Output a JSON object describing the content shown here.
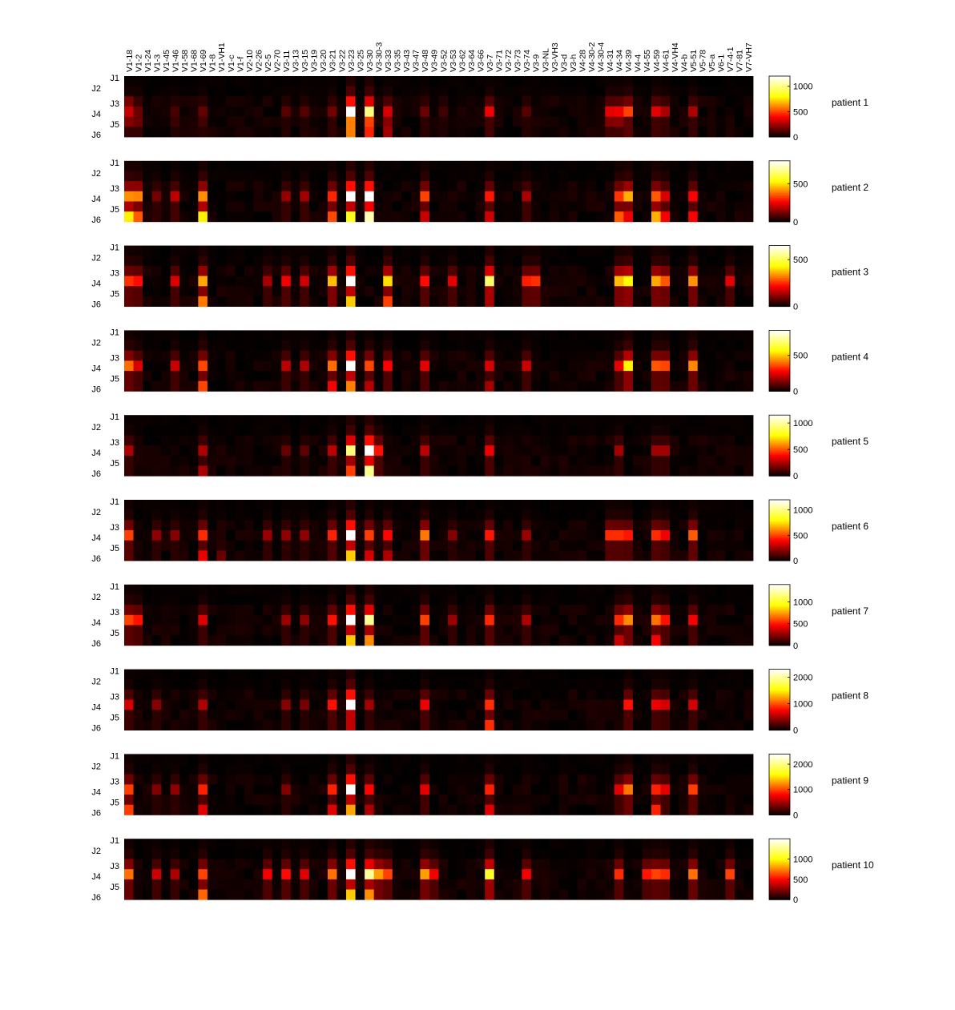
{
  "chart_data": {
    "type": "heatmap",
    "x_labels": [
      "V1-18",
      "V1-2",
      "V1-24",
      "V1-3",
      "V1-45",
      "V1-46",
      "V1-58",
      "V1-68",
      "V1-69",
      "V1-8",
      "V1-VH1",
      "V1-c",
      "V1-f",
      "V2-10",
      "V2-26",
      "V2-5",
      "V2-70",
      "V3-11",
      "V3-13",
      "V3-15",
      "V3-19",
      "V3-20",
      "V3-21",
      "V3-22",
      "V3-23",
      "V3-25",
      "V3-30",
      "V3-30-3",
      "V3-33",
      "V3-35",
      "V3-43",
      "V3-47",
      "V3-48",
      "V3-49",
      "V3-52",
      "V3-53",
      "V3-62",
      "V3-64",
      "V3-66",
      "V3-7",
      "V3-71",
      "V3-72",
      "V3-73",
      "V3-74",
      "V3-9",
      "V3-NL",
      "V3-VH3",
      "V3-d",
      "V3-h",
      "V4-28",
      "V4-30-2",
      "V4-30-4",
      "V4-31",
      "V4-34",
      "V4-39",
      "V4-4",
      "V4-55",
      "V4-59",
      "V4-61",
      "V4-VH4",
      "V4-b",
      "V5-51",
      "V5-78",
      "V5-a",
      "V6-1",
      "V7-4-1",
      "V7-81",
      "V7-VH7"
    ],
    "y_labels": [
      "J1",
      "J2",
      "J3",
      "J4",
      "J5",
      "J6"
    ],
    "colormap": "hot",
    "cmap_colors": [
      "#000000",
      "#ff0000",
      "#ffff00",
      "#ffffff"
    ],
    "panels": [
      {
        "title": "patient 1",
        "clim": [
          0,
          1200
        ],
        "ticks": [
          0,
          500,
          1000
        ],
        "hot": [
          [
            0,
            340,
            "2:0.55,3:0.9,4:0.6"
          ],
          [
            1,
            330,
            "3:0.5,4:0.5"
          ],
          [
            5,
            220,
            "3:0.5,4:0.4"
          ],
          [
            8,
            260,
            "3:0.6,4:0.4"
          ],
          [
            17,
            230,
            "3:0.6"
          ],
          [
            19,
            220,
            "3:0.6"
          ],
          [
            22,
            300,
            "3:0.6"
          ],
          [
            24,
            1200,
            "3:1,4:0.5,5:0.5"
          ],
          [
            26,
            1000,
            "3:1,4:0.5,5:0.45"
          ],
          [
            28,
            420,
            "3:0.8,4:0.5,5:0.6"
          ],
          [
            32,
            280,
            "3:0.6"
          ],
          [
            34,
            200,
            "3:0.5"
          ],
          [
            39,
            420,
            "3:0.9"
          ],
          [
            43,
            230,
            "3:0.6"
          ],
          [
            52,
            400,
            "3:0.9,4:0.5"
          ],
          [
            53,
            420,
            "3:0.9,4:0.5"
          ],
          [
            54,
            560,
            "3:0.9"
          ],
          [
            57,
            400,
            "3:0.9"
          ],
          [
            58,
            330,
            "3:0.8"
          ],
          [
            61,
            340,
            "3:0.8"
          ]
        ]
      },
      {
        "title": "patient 2",
        "clim": [
          0,
          800
        ],
        "ticks": [
          0,
          500
        ],
        "hot": [
          [
            0,
            520,
            "3:0.8,5:1"
          ],
          [
            1,
            450,
            "3:0.9,5:0.8"
          ],
          [
            3,
            200,
            "3:0.6"
          ],
          [
            5,
            280,
            "3:0.7"
          ],
          [
            8,
            520,
            "3:0.8,5:1"
          ],
          [
            17,
            220,
            "3:0.7"
          ],
          [
            19,
            240,
            "3:0.7"
          ],
          [
            22,
            380,
            "3:0.8,5:0.9"
          ],
          [
            24,
            800,
            "3:1,5:0.7"
          ],
          [
            26,
            800,
            "3:1,5:0.9"
          ],
          [
            32,
            420,
            "3:0.8,5:0.5"
          ],
          [
            39,
            360,
            "3:0.8,5:0.6"
          ],
          [
            43,
            250,
            "3:0.7"
          ],
          [
            53,
            400,
            "3:0.8,5:0.9"
          ],
          [
            54,
            500,
            "3:0.9,5:0.5"
          ],
          [
            57,
            450,
            "3:0.8,5:1"
          ],
          [
            58,
            320,
            "3:0.7,5:0.8"
          ],
          [
            61,
            330,
            "3:0.8,5:0.8"
          ]
        ]
      },
      {
        "title": "patient 3",
        "clim": [
          0,
          650
        ],
        "ticks": [
          0,
          500
        ],
        "hot": [
          [
            0,
            320,
            "3:0.8"
          ],
          [
            1,
            280,
            "3:0.8"
          ],
          [
            5,
            230,
            "3:0.8"
          ],
          [
            8,
            400,
            "3:0.9,5:0.8"
          ],
          [
            15,
            200,
            "3:0.7"
          ],
          [
            17,
            260,
            "3:0.8"
          ],
          [
            19,
            220,
            "3:0.8"
          ],
          [
            22,
            420,
            "3:0.9"
          ],
          [
            24,
            650,
            "3:1,5:0.6"
          ],
          [
            28,
            450,
            "3:0.9,5:0.6"
          ],
          [
            32,
            280,
            "3:0.8"
          ],
          [
            35,
            240,
            "3:0.8"
          ],
          [
            39,
            580,
            "3:0.9"
          ],
          [
            43,
            300,
            "3:0.8"
          ],
          [
            44,
            320,
            "3:0.8"
          ],
          [
            53,
            420,
            "3:0.9"
          ],
          [
            54,
            480,
            "3:0.9"
          ],
          [
            57,
            400,
            "3:0.9"
          ],
          [
            58,
            360,
            "3:0.8"
          ],
          [
            61,
            380,
            "3:0.9"
          ],
          [
            65,
            240,
            "3:0.8"
          ]
        ]
      },
      {
        "title": "patient 4",
        "clim": [
          0,
          850
        ],
        "ticks": [
          0,
          500
        ],
        "hot": [
          [
            0,
            450,
            "3:0.9"
          ],
          [
            1,
            300,
            "3:0.8"
          ],
          [
            5,
            280,
            "3:0.8"
          ],
          [
            8,
            450,
            "3:0.8,5:0.8"
          ],
          [
            17,
            260,
            "3:0.8"
          ],
          [
            19,
            240,
            "3:0.8"
          ],
          [
            22,
            450,
            "3:0.9,5:0.6"
          ],
          [
            24,
            850,
            "3:1,5:0.5"
          ],
          [
            26,
            400,
            "3:0.9,5:0.5"
          ],
          [
            28,
            350,
            "3:0.8"
          ],
          [
            32,
            320,
            "3:0.8"
          ],
          [
            39,
            300,
            "3:0.8,5:0.6"
          ],
          [
            43,
            280,
            "3:0.8"
          ],
          [
            53,
            320,
            "3:0.8"
          ],
          [
            54,
            620,
            "3:0.9"
          ],
          [
            57,
            420,
            "3:0.9"
          ],
          [
            58,
            400,
            "3:0.9"
          ],
          [
            61,
            480,
            "3:0.9"
          ]
        ]
      },
      {
        "title": "patient 5",
        "clim": [
          0,
          1150
        ],
        "ticks": [
          0,
          500,
          1000
        ],
        "hot": [
          [
            0,
            320,
            "3:0.8"
          ],
          [
            8,
            320,
            "3:0.8,5:0.8"
          ],
          [
            17,
            220,
            "3:0.7"
          ],
          [
            19,
            200,
            "3:0.7"
          ],
          [
            22,
            350,
            "3:0.8"
          ],
          [
            24,
            950,
            "3:1,5:0.5"
          ],
          [
            26,
            1150,
            "3:1,5:0.85"
          ],
          [
            27,
            450,
            "3:0.9"
          ],
          [
            32,
            350,
            "3:0.8"
          ],
          [
            39,
            450,
            "3:0.8"
          ],
          [
            53,
            300,
            "3:0.8"
          ],
          [
            57,
            300,
            "3:0.8"
          ],
          [
            58,
            300,
            "3:0.8"
          ]
        ]
      },
      {
        "title": "patient 6",
        "clim": [
          0,
          1200
        ],
        "ticks": [
          0,
          500,
          1000
        ],
        "hot": [
          [
            0,
            550,
            "3:0.9"
          ],
          [
            3,
            280,
            "3:0.8"
          ],
          [
            5,
            260,
            "3:0.8"
          ],
          [
            8,
            520,
            "3:0.9,5:0.7"
          ],
          [
            10,
            200,
            "5:0.8"
          ],
          [
            15,
            300,
            "3:0.8"
          ],
          [
            17,
            280,
            "3:0.8"
          ],
          [
            19,
            280,
            "3:0.8"
          ],
          [
            22,
            500,
            "3:0.9"
          ],
          [
            24,
            1200,
            "3:1,5:0.6"
          ],
          [
            26,
            550,
            "3:0.9,5:0.6"
          ],
          [
            28,
            450,
            "3:0.9,5:0.6"
          ],
          [
            32,
            650,
            "3:0.9"
          ],
          [
            35,
            260,
            "3:0.8"
          ],
          [
            39,
            480,
            "3:0.9"
          ],
          [
            43,
            300,
            "3:0.8"
          ],
          [
            52,
            520,
            "3:0.9"
          ],
          [
            53,
            520,
            "3:0.9"
          ],
          [
            54,
            480,
            "3:0.9"
          ],
          [
            57,
            520,
            "3:0.9"
          ],
          [
            58,
            420,
            "3:0.9"
          ],
          [
            61,
            600,
            "3:0.9"
          ]
        ]
      },
      {
        "title": "patient 7",
        "clim": [
          0,
          1400
        ],
        "ticks": [
          0,
          500,
          1000
        ],
        "hot": [
          [
            0,
            650,
            "3:0.9"
          ],
          [
            1,
            550,
            "3:0.9"
          ],
          [
            8,
            450,
            "3:0.9"
          ],
          [
            17,
            350,
            "3:0.8"
          ],
          [
            19,
            320,
            "3:0.8"
          ],
          [
            22,
            550,
            "3:0.9"
          ],
          [
            24,
            1400,
            "3:1,5:0.6"
          ],
          [
            26,
            1200,
            "3:1,5:0.6"
          ],
          [
            32,
            650,
            "3:0.9"
          ],
          [
            35,
            350,
            "3:0.8"
          ],
          [
            39,
            600,
            "3:0.9"
          ],
          [
            43,
            400,
            "3:0.8"
          ],
          [
            53,
            600,
            "3:0.9,5:0.6"
          ],
          [
            54,
            800,
            "3:0.9"
          ],
          [
            57,
            750,
            "3:0.9,5:0.6"
          ],
          [
            58,
            550,
            "3:0.9"
          ],
          [
            61,
            500,
            "3:0.9"
          ]
        ]
      },
      {
        "title": "patient 8",
        "clim": [
          0,
          2300
        ],
        "ticks": [
          0,
          1000,
          2000
        ],
        "hot": [
          [
            0,
            700,
            "3:0.9"
          ],
          [
            3,
            500,
            "3:0.8"
          ],
          [
            8,
            650,
            "3:0.8"
          ],
          [
            17,
            500,
            "3:0.8"
          ],
          [
            19,
            450,
            "3:0.8"
          ],
          [
            22,
            900,
            "3:0.9"
          ],
          [
            24,
            2300,
            "3:1"
          ],
          [
            26,
            600,
            "3:0.8"
          ],
          [
            32,
            800,
            "3:0.9"
          ],
          [
            39,
            1000,
            "3:0.9,5:0.9"
          ],
          [
            54,
            900,
            "3:0.9"
          ],
          [
            57,
            800,
            "3:0.9"
          ],
          [
            58,
            700,
            "3:0.9"
          ],
          [
            61,
            700,
            "3:0.9"
          ]
        ]
      },
      {
        "title": "patient 9",
        "clim": [
          0,
          2400
        ],
        "ticks": [
          0,
          1000,
          2000
        ],
        "hot": [
          [
            0,
            1100,
            "3:0.9,5:0.9"
          ],
          [
            3,
            500,
            "3:0.8"
          ],
          [
            5,
            550,
            "3:0.8"
          ],
          [
            8,
            1000,
            "3:0.9,5:0.7"
          ],
          [
            17,
            500,
            "3:0.8"
          ],
          [
            22,
            1000,
            "3:0.9,5:0.7"
          ],
          [
            24,
            2400,
            "3:1,5:0.55"
          ],
          [
            26,
            900,
            "3:0.9,5:0.6"
          ],
          [
            32,
            800,
            "3:0.9"
          ],
          [
            39,
            1000,
            "3:0.9,5:0.7"
          ],
          [
            53,
            800,
            "3:0.9"
          ],
          [
            54,
            1300,
            "3:0.9"
          ],
          [
            57,
            1000,
            "3:0.9,5:0.9"
          ],
          [
            58,
            800,
            "3:0.9"
          ],
          [
            61,
            1100,
            "3:0.9"
          ]
        ]
      },
      {
        "title": "patient 10",
        "clim": [
          0,
          1500
        ],
        "ticks": [
          0,
          500,
          1000
        ],
        "hot": [
          [
            0,
            800,
            "3:0.9"
          ],
          [
            3,
            500,
            "3:0.8"
          ],
          [
            5,
            420,
            "3:0.8"
          ],
          [
            8,
            700,
            "3:0.9,5:1"
          ],
          [
            15,
            600,
            "3:0.8"
          ],
          [
            17,
            650,
            "3:0.8"
          ],
          [
            19,
            550,
            "3:0.8"
          ],
          [
            22,
            800,
            "3:0.9"
          ],
          [
            24,
            1500,
            "3:1,5:0.6"
          ],
          [
            26,
            1300,
            "3:1,5:0.6"
          ],
          [
            27,
            900,
            "3:0.9"
          ],
          [
            28,
            700,
            "3:0.9"
          ],
          [
            32,
            900,
            "3:0.9"
          ],
          [
            33,
            600,
            "3:0.8"
          ],
          [
            39,
            1200,
            "3:0.9"
          ],
          [
            43,
            600,
            "3:0.8"
          ],
          [
            53,
            650,
            "3:0.9"
          ],
          [
            56,
            600,
            "3:0.9"
          ],
          [
            57,
            700,
            "3:0.9"
          ],
          [
            58,
            650,
            "3:0.9"
          ],
          [
            61,
            800,
            "3:0.9"
          ],
          [
            65,
            700,
            "3:0.9"
          ]
        ]
      }
    ]
  }
}
